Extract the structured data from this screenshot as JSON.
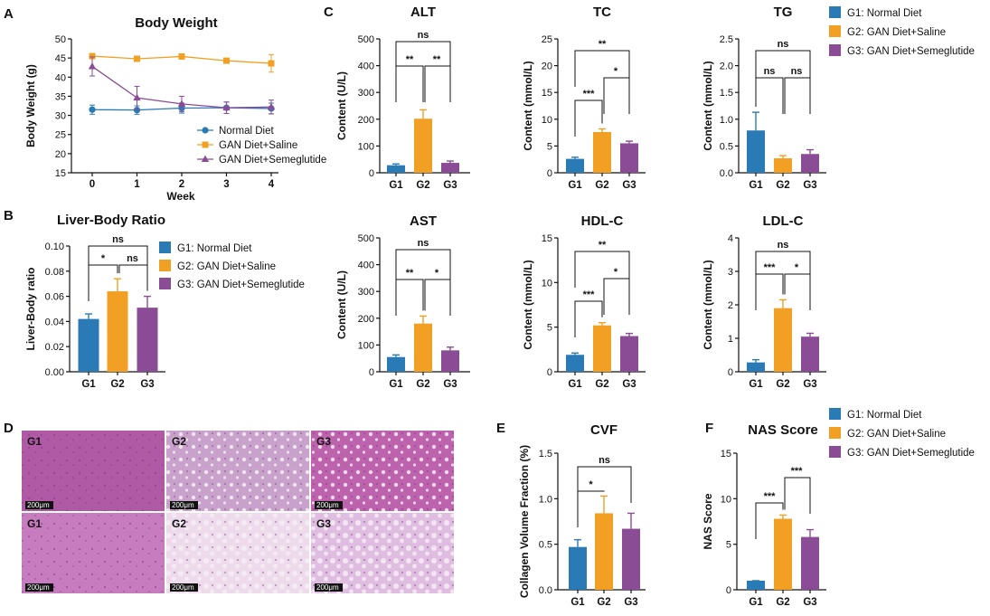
{
  "colors": {
    "G1": "#2a7ab5",
    "G2": "#f2a024",
    "G3": "#8b4c96"
  },
  "panel_letters": [
    "A",
    "B",
    "C",
    "D",
    "E",
    "F"
  ],
  "chart_data": [
    {
      "id": "body-weight",
      "letter": "A",
      "type": "line",
      "title": "Body Weight",
      "xlabel": "Week",
      "ylabel": "Body Weight (g)",
      "x": [
        0,
        1,
        2,
        3,
        4
      ],
      "xlim": [
        0,
        4
      ],
      "ylim": [
        15,
        50
      ],
      "yticks": [
        15,
        20,
        25,
        30,
        35,
        40,
        45,
        50
      ],
      "series": [
        {
          "name": "Normal Diet",
          "key": "G1",
          "marker": "circle",
          "values": [
            31.5,
            31.4,
            31.9,
            32.0,
            31.8
          ],
          "errors": [
            1.2,
            1.1,
            1.3,
            1.5,
            1.4
          ]
        },
        {
          "name": "GAN Diet+Saline",
          "key": "G2",
          "marker": "square",
          "values": [
            45.5,
            44.8,
            45.4,
            44.3,
            43.6
          ],
          "errors": [
            0.5,
            0.5,
            0.5,
            0.6,
            2.3
          ]
        },
        {
          "name": "GAN Diet+Semeglutide",
          "key": "G3",
          "marker": "triangle",
          "values": [
            42.8,
            34.6,
            33.0,
            32.0,
            32.2
          ],
          "errors": [
            2.5,
            3.0,
            2.0,
            1.5,
            1.8
          ]
        }
      ],
      "legend_position": "bottom-right"
    },
    {
      "id": "liver-body-ratio",
      "letter": "B",
      "type": "bar",
      "title": "Liver-Body Ratio",
      "ylabel": "Liver-Body ratio",
      "categories": [
        "G1",
        "G2",
        "G3"
      ],
      "values": [
        0.042,
        0.064,
        0.051
      ],
      "errors": [
        0.004,
        0.01,
        0.009
      ],
      "ylim": [
        0,
        0.1
      ],
      "yticks": [
        "0.00",
        "0.02",
        "0.04",
        "0.06",
        "0.08",
        "0.10"
      ],
      "comparisons": [
        {
          "a": 0,
          "b": 1,
          "label": "*"
        },
        {
          "a": 1,
          "b": 2,
          "label": "ns"
        },
        {
          "a": 0,
          "b": 2,
          "label": "ns"
        }
      ]
    },
    {
      "id": "alt",
      "letter": "C",
      "type": "bar",
      "title": "ALT",
      "ylabel": "Content (U/L)",
      "categories": [
        "G1",
        "G2",
        "G3"
      ],
      "values": [
        28,
        202,
        37
      ],
      "errors": [
        5,
        33,
        7
      ],
      "ylim": [
        0,
        500
      ],
      "yticks": [
        "0",
        "100",
        "200",
        "300",
        "400",
        "500"
      ],
      "comparisons": [
        {
          "a": 0,
          "b": 1,
          "label": "**"
        },
        {
          "a": 1,
          "b": 2,
          "label": "**"
        },
        {
          "a": 0,
          "b": 2,
          "label": "ns"
        }
      ]
    },
    {
      "id": "tc",
      "type": "bar",
      "title": "TC",
      "ylabel": "Content (mmol/L)",
      "categories": [
        "G1",
        "G2",
        "G3"
      ],
      "values": [
        2.6,
        7.6,
        5.5
      ],
      "errors": [
        0.3,
        0.6,
        0.4
      ],
      "ylim": [
        0,
        25
      ],
      "yticks": [
        "0",
        "5",
        "10",
        "15",
        "20",
        "25"
      ],
      "comparisons": [
        {
          "a": 0,
          "b": 1,
          "label": "***"
        },
        {
          "a": 1,
          "b": 2,
          "label": "*"
        },
        {
          "a": 0,
          "b": 2,
          "label": "**"
        }
      ]
    },
    {
      "id": "tg",
      "type": "bar",
      "title": "TG",
      "ylabel": "Content (mmol/L)",
      "categories": [
        "G1",
        "G2",
        "G3"
      ],
      "values": [
        0.79,
        0.27,
        0.35
      ],
      "errors": [
        0.34,
        0.05,
        0.08
      ],
      "ylim": [
        0,
        2.5
      ],
      "yticks": [
        "0.0",
        "0.5",
        "1.0",
        "1.5",
        "2.0",
        "2.5"
      ],
      "comparisons": [
        {
          "a": 0,
          "b": 1,
          "label": "ns"
        },
        {
          "a": 1,
          "b": 2,
          "label": "ns"
        },
        {
          "a": 0,
          "b": 2,
          "label": "ns"
        }
      ]
    },
    {
      "id": "ast",
      "type": "bar",
      "title": "AST",
      "ylabel": "Content (U/L)",
      "categories": [
        "G1",
        "G2",
        "G3"
      ],
      "values": [
        55,
        180,
        80
      ],
      "errors": [
        8,
        28,
        12
      ],
      "ylim": [
        0,
        500
      ],
      "yticks": [
        "0",
        "100",
        "200",
        "300",
        "400",
        "500"
      ],
      "comparisons": [
        {
          "a": 0,
          "b": 1,
          "label": "**"
        },
        {
          "a": 1,
          "b": 2,
          "label": "*"
        },
        {
          "a": 0,
          "b": 2,
          "label": "ns"
        }
      ]
    },
    {
      "id": "hdl-c",
      "type": "bar",
      "title": "HDL-C",
      "ylabel": "Content (mmol/L)",
      "categories": [
        "G1",
        "G2",
        "G3"
      ],
      "values": [
        1.9,
        5.2,
        4.0
      ],
      "errors": [
        0.2,
        0.3,
        0.3
      ],
      "ylim": [
        0,
        15
      ],
      "yticks": [
        "0",
        "5",
        "10",
        "15"
      ],
      "comparisons": [
        {
          "a": 0,
          "b": 1,
          "label": "***"
        },
        {
          "a": 1,
          "b": 2,
          "label": "*"
        },
        {
          "a": 0,
          "b": 2,
          "label": "**"
        }
      ]
    },
    {
      "id": "ldl-c",
      "type": "bar",
      "title": "LDL-C",
      "ylabel": "Content (mmol/L)",
      "categories": [
        "G1",
        "G2",
        "G3"
      ],
      "values": [
        0.28,
        1.9,
        1.05
      ],
      "errors": [
        0.08,
        0.25,
        0.1
      ],
      "ylim": [
        0,
        4
      ],
      "yticks": [
        "0",
        "1",
        "2",
        "3",
        "4"
      ],
      "comparisons": [
        {
          "a": 0,
          "b": 1,
          "label": "***"
        },
        {
          "a": 1,
          "b": 2,
          "label": "*"
        },
        {
          "a": 0,
          "b": 2,
          "label": "ns"
        }
      ]
    },
    {
      "id": "cvf",
      "letter": "E",
      "type": "bar",
      "title": "CVF",
      "ylabel": "Collagen Volume Fraction (%)",
      "categories": [
        "G1",
        "G2",
        "G3"
      ],
      "values": [
        0.47,
        0.84,
        0.67
      ],
      "errors": [
        0.08,
        0.19,
        0.17
      ],
      "ylim": [
        0,
        1.5
      ],
      "yticks": [
        "0.0",
        "0.5",
        "1.0",
        "1.5"
      ],
      "comparisons": [
        {
          "a": 0,
          "b": 1,
          "label": "*"
        },
        {
          "a": 0,
          "b": 2,
          "label": "ns"
        }
      ]
    },
    {
      "id": "nas-score",
      "letter": "F",
      "type": "bar",
      "title": "NAS Score",
      "ylabel": "NAS Score",
      "categories": [
        "G1",
        "G2",
        "G3"
      ],
      "values": [
        1.0,
        7.8,
        5.8
      ],
      "errors": [
        0.0,
        0.4,
        0.8
      ],
      "ylim": [
        0,
        15
      ],
      "yticks": [
        "0",
        "5",
        "10",
        "15"
      ],
      "comparisons": [
        {
          "a": 0,
          "b": 1,
          "label": "***"
        },
        {
          "a": 1,
          "b": 2,
          "label": "***"
        }
      ]
    }
  ],
  "group_legend": [
    {
      "key": "G1",
      "label": "G1: Normal Diet"
    },
    {
      "key": "G2",
      "label": "G2: GAN Diet+Saline"
    },
    {
      "key": "G3",
      "label": "G3: GAN Diet+Semeglutide"
    }
  ],
  "histology": {
    "letter": "D",
    "scale_bar": "200μm",
    "rows": [
      {
        "panels": [
          {
            "label": "G1",
            "tint": "#b05aa5"
          },
          {
            "label": "G2",
            "tint": "#c9a2cc"
          },
          {
            "label": "G3",
            "tint": "#bd62ad"
          }
        ]
      },
      {
        "panels": [
          {
            "label": "G1",
            "tint": "#c67cbf"
          },
          {
            "label": "G2",
            "tint": "#eddbec"
          },
          {
            "label": "G3",
            "tint": "#dfbde0"
          }
        ]
      }
    ]
  }
}
